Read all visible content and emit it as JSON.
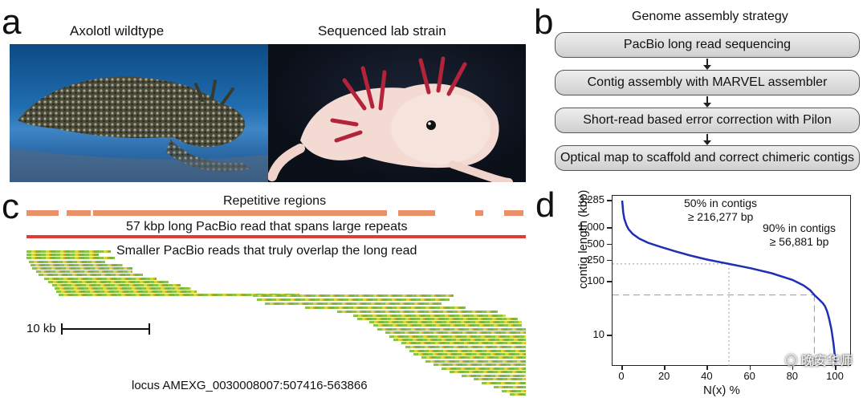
{
  "panel_a": {
    "letter": "a",
    "left_caption": "Axolotl wildtype",
    "right_caption": "Sequenced lab strain"
  },
  "panel_b": {
    "letter": "b",
    "title": "Genome assembly strategy",
    "steps": [
      "PacBio long read sequencing",
      "Contig assembly with MARVEL assembler",
      "Short-read based error correction with Pilon",
      "Optical map to scaffold and correct chimeric contigs"
    ]
  },
  "panel_c": {
    "letter": "c",
    "repetitive_label": "Repetitive regions",
    "long_read_label": "57 kbp long PacBio read that spans large repeats",
    "short_reads_label": "Smaller PacBio reads that truly overlap the long read",
    "scale_label": "10 kb",
    "locus_label": "locus  AMEXG_0030008007:507416-563866",
    "colors": {
      "repeat": "#e9926a",
      "long_read": "#e53935",
      "short_read": "#8bc34a"
    }
  },
  "panel_d": {
    "letter": "d",
    "annotation_50_line1": "50% in contigs",
    "annotation_50_line2": "≥ 216,277 bp",
    "annotation_90_line1": "90% in contigs",
    "annotation_90_line2": "≥ 56,881 bp"
  },
  "chart_data": {
    "type": "line",
    "xlabel": "N(x) %",
    "ylabel": "contig length (kbp)",
    "xlim": [
      0,
      100
    ],
    "yscale": "log",
    "ylim": [
      3,
      3285
    ],
    "xticks": [
      "0",
      "20",
      "40",
      "60",
      "80",
      "100"
    ],
    "yticks": [
      "3,285",
      "1,000",
      "500",
      "250",
      "100",
      "10"
    ],
    "ytick_values": [
      3285,
      1000,
      500,
      250,
      100,
      10
    ],
    "series": [
      {
        "color": "#1f2fb5",
        "x": [
          0,
          0.5,
          1,
          2,
          3,
          5,
          8,
          12,
          18,
          25,
          32,
          40,
          50,
          60,
          70,
          80,
          85,
          88,
          90,
          92,
          94,
          95,
          96,
          97,
          98,
          99,
          99.5,
          100
        ],
        "y": [
          3285,
          2000,
          1500,
          1150,
          960,
          780,
          640,
          540,
          450,
          370,
          310,
          260,
          216.3,
          180,
          145,
          108,
          86,
          70,
          56.9,
          48,
          40,
          35,
          28,
          20,
          13,
          7,
          4.5,
          3
        ]
      }
    ],
    "reference_lines": [
      {
        "x": 50,
        "y": 216.277
      },
      {
        "x": 90,
        "y": 56.881
      }
    ]
  }
}
